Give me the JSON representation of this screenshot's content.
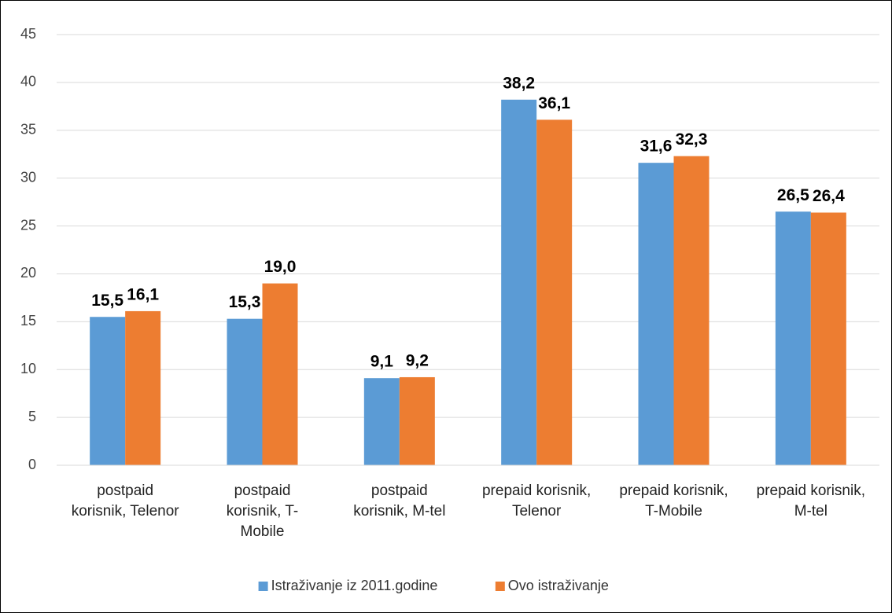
{
  "chart_data": {
    "type": "bar",
    "categories": [
      "postpaid korisnik, Telenor",
      "postpaid korisnik, T-Mobile",
      "postpaid korisnik, M-tel",
      "prepaid korisnik, Telenor",
      "prepaid korisnik, T-Mobile",
      "prepaid korisnik, M-tel"
    ],
    "series": [
      {
        "name": "Istraživanje iz 2011.godine",
        "color": "#5b9bd5",
        "values": [
          15.5,
          15.3,
          9.1,
          38.2,
          31.6,
          26.5
        ],
        "value_labels": [
          "15,5",
          "15,3",
          "9,1",
          "38,2",
          "31,6",
          "26,5"
        ]
      },
      {
        "name": "Ovo istraživanje",
        "color": "#ed7d31",
        "values": [
          16.1,
          19.0,
          9.2,
          36.1,
          32.3,
          26.4
        ],
        "value_labels": [
          "16,1",
          "19,0",
          "9,2",
          "36,1",
          "32,3",
          "26,4"
        ]
      }
    ],
    "ylim": [
      0,
      45
    ],
    "yticks": [
      0,
      5,
      10,
      15,
      20,
      25,
      30,
      35,
      40,
      45
    ],
    "grid": true,
    "legend": "bottom"
  }
}
